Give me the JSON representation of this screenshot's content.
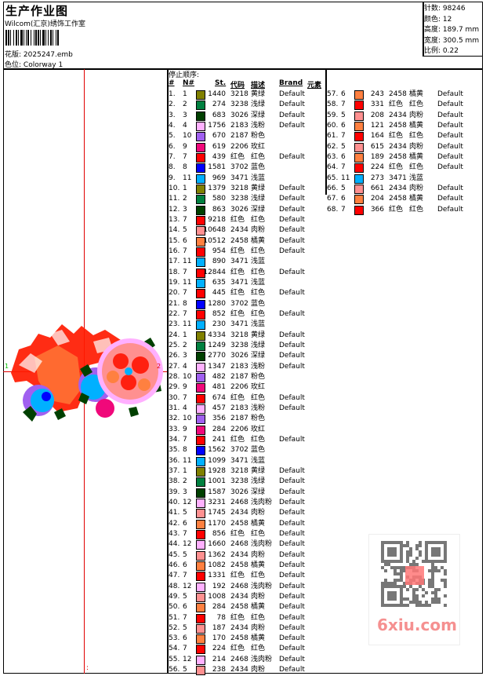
{
  "header": {
    "title": "生产作业图",
    "company": "Wilcom(汇京)绣饰工作室",
    "design_label": "花版:",
    "design_file": "2025247.emb",
    "colorway_label": "色位:",
    "colorway": "Colorway 1"
  },
  "info": [
    {
      "label": "针数:",
      "value": "98246"
    },
    {
      "label": "颜色:",
      "value": "12"
    },
    {
      "label": "高度:",
      "value": "189.7 mm"
    },
    {
      "label": "宽度:",
      "value": "300.5 mm"
    },
    {
      "label": "比例:",
      "value": "0.22"
    }
  ],
  "preview": {
    "marker_start": "1",
    "marker_end": "2",
    "marker_bottom": ":"
  },
  "table": {
    "caption": "停止顺序:",
    "columns": [
      "#",
      "N#",
      "St.",
      "代码",
      "描述",
      "Brand",
      "元素"
    ],
    "needle_colors": {
      "1": "#808000",
      "2": "#008040",
      "3": "#004000",
      "4": "#ffb0ff",
      "5": "#ff9090",
      "6": "#ff8040",
      "7": "#ff0000",
      "8": "#0000ff",
      "9": "#f0087a",
      "10": "#a060f0",
      "11": "#00b0ff",
      "12": "#ffb0ff"
    },
    "rows": [
      [
        "1.",
        "1",
        "1440",
        "3218",
        "黄绿",
        "Default"
      ],
      [
        "2.",
        "2",
        "274",
        "3238",
        "浅绿",
        "Default"
      ],
      [
        "3.",
        "3",
        "683",
        "3026",
        "深绿",
        "Default"
      ],
      [
        "4.",
        "4",
        "1756",
        "2183",
        "浅粉",
        "Default"
      ],
      [
        "5.",
        "10",
        "670",
        "2187",
        "粉色",
        ""
      ],
      [
        "6.",
        "9",
        "619",
        "2206",
        "玫红",
        ""
      ],
      [
        "7.",
        "7",
        "439",
        "红色",
        "红色",
        "Default"
      ],
      [
        "8.",
        "8",
        "1581",
        "3702",
        "蓝色",
        ""
      ],
      [
        "9.",
        "11",
        "969",
        "3471",
        "浅蓝",
        ""
      ],
      [
        "10.",
        "1",
        "1379",
        "3218",
        "黄绿",
        "Default"
      ],
      [
        "11.",
        "2",
        "580",
        "3238",
        "浅绿",
        "Default"
      ],
      [
        "12.",
        "3",
        "863",
        "3026",
        "深绿",
        "Default"
      ],
      [
        "13.",
        "7",
        "9218",
        "红色",
        "红色",
        "Default"
      ],
      [
        "14.",
        "5",
        "10648",
        "2434",
        "肉粉",
        "Default"
      ],
      [
        "15.",
        "6",
        "10512",
        "2458",
        "橘黄",
        "Default"
      ],
      [
        "16.",
        "7",
        "954",
        "红色",
        "红色",
        "Default"
      ],
      [
        "17.",
        "11",
        "890",
        "3471",
        "浅蓝",
        ""
      ],
      [
        "18.",
        "7",
        "12844",
        "红色",
        "红色",
        "Default"
      ],
      [
        "19.",
        "11",
        "635",
        "3471",
        "浅蓝",
        ""
      ],
      [
        "20.",
        "7",
        "445",
        "红色",
        "红色",
        "Default"
      ],
      [
        "21.",
        "8",
        "1280",
        "3702",
        "蓝色",
        ""
      ],
      [
        "22.",
        "7",
        "852",
        "红色",
        "红色",
        "Default"
      ],
      [
        "23.",
        "11",
        "230",
        "3471",
        "浅蓝",
        ""
      ],
      [
        "24.",
        "1",
        "4334",
        "3218",
        "黄绿",
        "Default"
      ],
      [
        "25.",
        "2",
        "1249",
        "3238",
        "浅绿",
        "Default"
      ],
      [
        "26.",
        "3",
        "2770",
        "3026",
        "深绿",
        "Default"
      ],
      [
        "27.",
        "4",
        "1347",
        "2183",
        "浅粉",
        "Default"
      ],
      [
        "28.",
        "10",
        "482",
        "2187",
        "粉色",
        ""
      ],
      [
        "29.",
        "9",
        "481",
        "2206",
        "玫红",
        ""
      ],
      [
        "30.",
        "7",
        "674",
        "红色",
        "红色",
        "Default"
      ],
      [
        "31.",
        "4",
        "457",
        "2183",
        "浅粉",
        "Default"
      ],
      [
        "32.",
        "10",
        "356",
        "2187",
        "粉色",
        ""
      ],
      [
        "33.",
        "9",
        "284",
        "2206",
        "玫红",
        ""
      ],
      [
        "34.",
        "7",
        "241",
        "红色",
        "红色",
        "Default"
      ],
      [
        "35.",
        "8",
        "1562",
        "3702",
        "蓝色",
        ""
      ],
      [
        "36.",
        "11",
        "1099",
        "3471",
        "浅蓝",
        ""
      ],
      [
        "37.",
        "1",
        "1928",
        "3218",
        "黄绿",
        "Default"
      ],
      [
        "38.",
        "2",
        "1001",
        "3238",
        "浅绿",
        "Default"
      ],
      [
        "39.",
        "3",
        "1587",
        "3026",
        "深绿",
        "Default"
      ],
      [
        "40.",
        "12",
        "3231",
        "2468",
        "浅肉粉",
        "Default"
      ],
      [
        "41.",
        "5",
        "1745",
        "2434",
        "肉粉",
        "Default"
      ],
      [
        "42.",
        "6",
        "1170",
        "2458",
        "橘黄",
        "Default"
      ],
      [
        "43.",
        "7",
        "856",
        "红色",
        "红色",
        "Default"
      ],
      [
        "44.",
        "12",
        "1660",
        "2468",
        "浅肉粉",
        "Default"
      ],
      [
        "45.",
        "5",
        "1362",
        "2434",
        "肉粉",
        "Default"
      ],
      [
        "46.",
        "6",
        "1082",
        "2458",
        "橘黄",
        "Default"
      ],
      [
        "47.",
        "7",
        "1331",
        "红色",
        "红色",
        "Default"
      ],
      [
        "48.",
        "12",
        "192",
        "2468",
        "浅肉粉",
        "Default"
      ],
      [
        "49.",
        "5",
        "1008",
        "2434",
        "肉粉",
        "Default"
      ],
      [
        "50.",
        "6",
        "284",
        "2458",
        "橘黄",
        "Default"
      ],
      [
        "51.",
        "7",
        "78",
        "红色",
        "红色",
        "Default"
      ],
      [
        "52.",
        "5",
        "187",
        "2434",
        "肉粉",
        "Default"
      ],
      [
        "53.",
        "6",
        "170",
        "2458",
        "橘黄",
        "Default"
      ],
      [
        "54.",
        "7",
        "224",
        "红色",
        "红色",
        "Default"
      ],
      [
        "55.",
        "12",
        "214",
        "2468",
        "浅肉粉",
        "Default"
      ],
      [
        "56.",
        "5",
        "238",
        "2434",
        "肉粉",
        "Default"
      ],
      [
        "57.",
        "6",
        "243",
        "2458",
        "橘黄",
        "Default"
      ],
      [
        "58.",
        "7",
        "331",
        "红色",
        "红色",
        "Default"
      ],
      [
        "59.",
        "5",
        "208",
        "2434",
        "肉粉",
        "Default"
      ],
      [
        "60.",
        "6",
        "121",
        "2458",
        "橘黄",
        "Default"
      ],
      [
        "61.",
        "7",
        "164",
        "红色",
        "红色",
        "Default"
      ],
      [
        "62.",
        "5",
        "615",
        "2434",
        "肉粉",
        "Default"
      ],
      [
        "63.",
        "6",
        "189",
        "2458",
        "橘黄",
        "Default"
      ],
      [
        "64.",
        "7",
        "224",
        "红色",
        "红色",
        "Default"
      ],
      [
        "65.",
        "11",
        "273",
        "3471",
        "浅蓝",
        ""
      ],
      [
        "66.",
        "5",
        "661",
        "2434",
        "肉粉",
        "Default"
      ],
      [
        "67.",
        "6",
        "204",
        "2458",
        "橘黄",
        "Default"
      ],
      [
        "68.",
        "7",
        "366",
        "红色",
        "红色",
        "Default"
      ]
    ]
  },
  "watermark": {
    "qr_stamp": "以图搜图",
    "site": "6xiu.com"
  }
}
